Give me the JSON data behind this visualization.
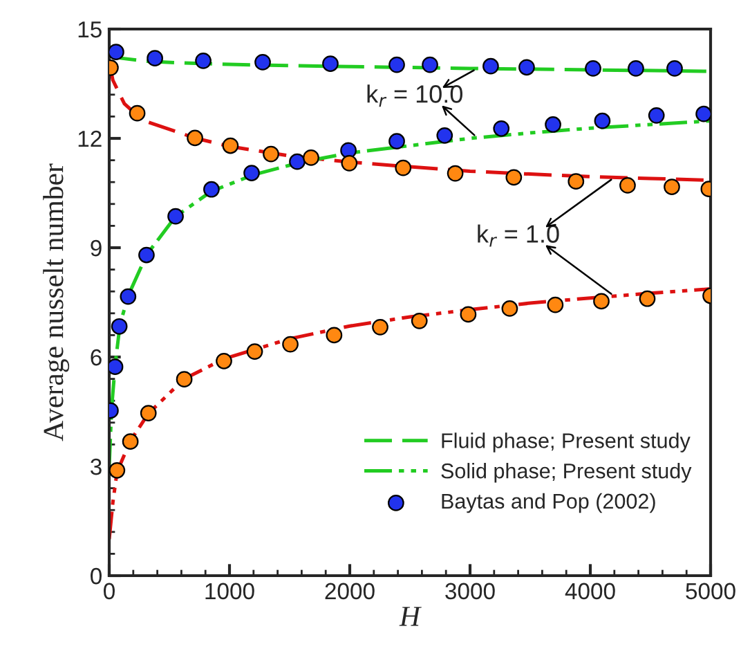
{
  "chart_data": {
    "type": "line",
    "xlabel": "H",
    "ylabel": "Average nusselt number",
    "xlim": [
      0,
      5000
    ],
    "xticks": [
      0,
      1000,
      2000,
      3000,
      4000,
      5000
    ],
    "ylim": [
      0,
      15
    ],
    "yticks": [
      0,
      3,
      6,
      9,
      12,
      15
    ],
    "grid": false,
    "legend": "bottom right",
    "series": [
      {
        "name": "Fluid phase; Present study",
        "line_style": "dashed",
        "color": "#22cc22",
        "x": [
          0,
          100,
          300,
          600,
          1000,
          1500,
          2000,
          3000,
          4000,
          5000
        ],
        "values": [
          14.3,
          14.2,
          14.12,
          14.07,
          14.03,
          14.0,
          13.97,
          13.92,
          13.88,
          13.84
        ]
      },
      {
        "line_style": "dashed",
        "color": "#dd1111",
        "x": [
          0,
          30,
          126,
          276,
          713,
          1000,
          1500,
          2000,
          2500,
          3000,
          3500,
          4000,
          4500,
          5000
        ],
        "values": [
          14.1,
          13.6,
          12.95,
          12.5,
          12.01,
          11.78,
          11.52,
          11.35,
          11.22,
          11.1,
          11.02,
          10.95,
          10.9,
          10.85
        ]
      },
      {
        "name": "Solid phase; Present study",
        "line_style": "dashdotdot",
        "color": "#22cc22",
        "x": [
          0,
          20,
          50,
          90,
          160,
          310,
          550,
          850,
          1200,
          1600,
          2000,
          2500,
          3000,
          3500,
          4000,
          4500,
          5000
        ],
        "values": [
          3.0,
          4.6,
          5.8,
          6.9,
          7.7,
          8.8,
          9.85,
          10.55,
          11.0,
          11.35,
          11.6,
          11.8,
          12.0,
          12.15,
          12.28,
          12.38,
          12.48
        ]
      },
      {
        "line_style": "dashdotdot",
        "color": "#dd1111",
        "x": [
          0,
          30,
          65,
          176,
          326,
          624,
          954,
          1500,
          2000,
          2500,
          3000,
          3500,
          4000,
          4500,
          5000
        ],
        "values": [
          1.0,
          2.0,
          2.85,
          3.7,
          4.45,
          5.4,
          5.95,
          6.5,
          6.85,
          7.1,
          7.3,
          7.48,
          7.62,
          7.75,
          7.87
        ]
      },
      {
        "name": "Baytas and Pop (2002)",
        "type": "scatter",
        "marker": "circle",
        "color": "#2233ee",
        "x": [
          57,
          380,
          782,
          1276,
          1839,
          2391,
          2667,
          3172,
          3471,
          4023,
          4379,
          4701
        ],
        "values": [
          14.37,
          14.2,
          14.13,
          14.09,
          14.05,
          14.02,
          14.02,
          13.98,
          13.95,
          13.92,
          13.92,
          13.92
        ]
      },
      {
        "type": "scatter",
        "marker": "circle",
        "color": "#2233ee",
        "x": [
          11,
          49,
          84,
          157,
          310,
          552,
          850,
          1184,
          1563,
          1989,
          2391,
          2789,
          3260,
          3690,
          4100,
          4550,
          4943
        ],
        "values": [
          4.53,
          5.73,
          6.84,
          7.66,
          8.8,
          9.86,
          10.6,
          11.05,
          11.36,
          11.67,
          11.92,
          12.08,
          12.27,
          12.38,
          12.48,
          12.63,
          12.67
        ]
      },
      {
        "type": "scatter",
        "marker": "circle",
        "color": "#ff8811",
        "x": [
          11,
          233,
          713,
          1008,
          1345,
          1678,
          1996,
          2444,
          2877,
          3364,
          3881,
          4310,
          4678,
          4985
        ],
        "values": [
          13.94,
          12.69,
          12.01,
          11.8,
          11.57,
          11.47,
          11.32,
          11.19,
          11.04,
          10.93,
          10.82,
          10.71,
          10.67,
          10.61
        ]
      },
      {
        "type": "scatter",
        "marker": "circle",
        "color": "#ff8811",
        "x": [
          65,
          176,
          326,
          624,
          954,
          1210,
          1506,
          1870,
          2253,
          2579,
          2985,
          3330,
          3709,
          4092,
          4474,
          5000
        ],
        "values": [
          2.89,
          3.68,
          4.46,
          5.39,
          5.89,
          6.15,
          6.35,
          6.6,
          6.82,
          6.99,
          7.17,
          7.33,
          7.43,
          7.53,
          7.6,
          7.68
        ]
      }
    ],
    "annotations": [
      {
        "text": "k$_{r}$ = 10.0",
        "x": 3060,
        "y": 13.92
      },
      {
        "text": "k$_{r}$ = 1.0",
        "x": 4200,
        "y": 10.93
      }
    ]
  }
}
